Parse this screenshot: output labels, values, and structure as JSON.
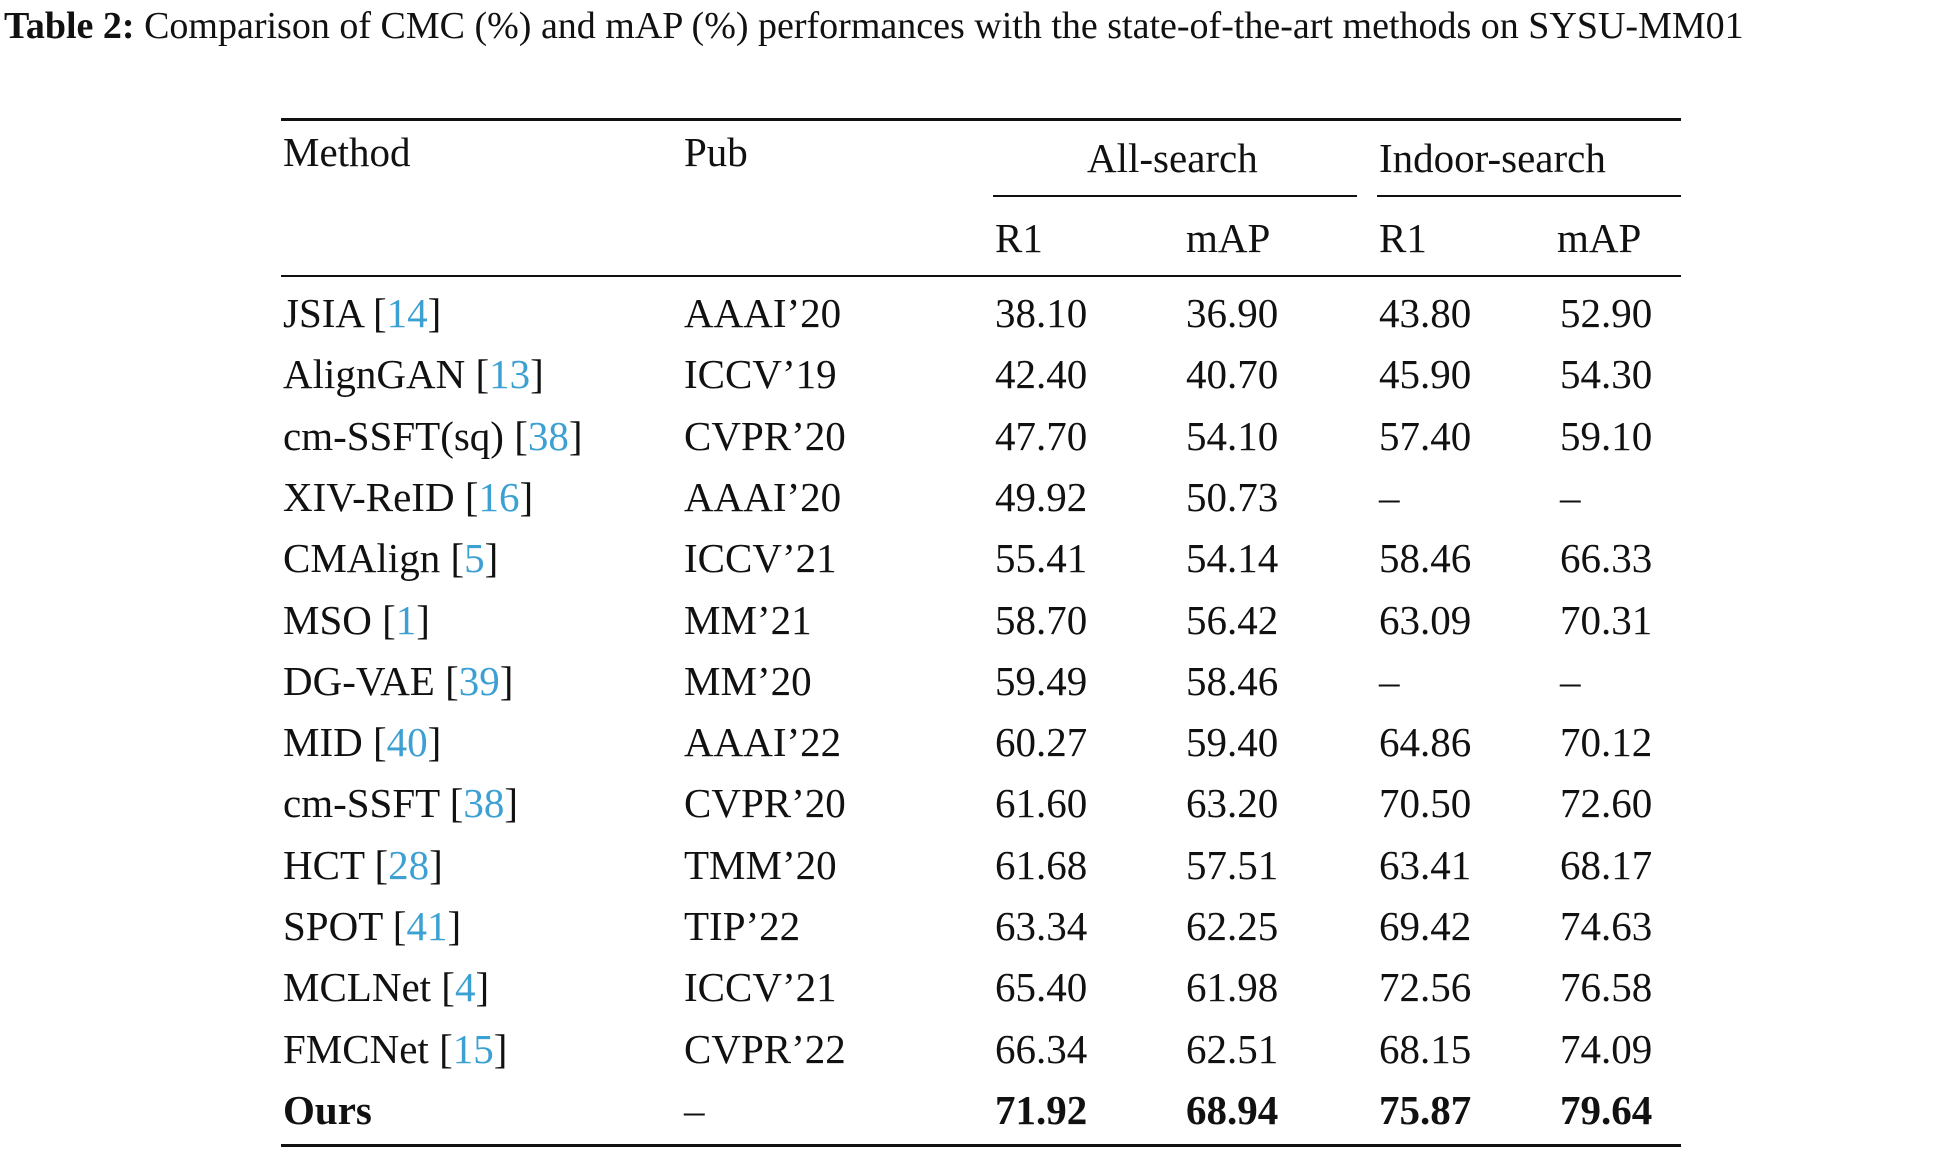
{
  "caption": {
    "label": "Table 2:",
    "text": "Comparison of CMC (%) and mAP (%) performances with the state-of-the-art methods on SYSU-MM01"
  },
  "header": {
    "method": "Method",
    "pub": "Pub",
    "group_all": "All-search",
    "group_indoor": "Indoor-search",
    "r1": "R1",
    "map": "mAP"
  },
  "rows": [
    {
      "method": "JSIA",
      "ref": "14",
      "pub": "AAAI’20",
      "all_r1": "38.10",
      "all_map": "36.90",
      "in_r1": "43.80",
      "in_map": "52.90"
    },
    {
      "method": "AlignGAN",
      "ref": "13",
      "pub": "ICCV’19",
      "all_r1": "42.40",
      "all_map": "40.70",
      "in_r1": "45.90",
      "in_map": "54.30"
    },
    {
      "method": "cm-SSFT(sq)",
      "ref": "38",
      "pub": "CVPR’20",
      "all_r1": "47.70",
      "all_map": "54.10",
      "in_r1": "57.40",
      "in_map": "59.10"
    },
    {
      "method": "XIV-ReID",
      "ref": "16",
      "pub": "AAAI’20",
      "all_r1": "49.92",
      "all_map": "50.73",
      "in_r1": "–",
      "in_map": "–"
    },
    {
      "method": "CMAlign",
      "ref": "5",
      "pub": "ICCV’21",
      "all_r1": "55.41",
      "all_map": "54.14",
      "in_r1": "58.46",
      "in_map": "66.33"
    },
    {
      "method": "MSO",
      "ref": "1",
      "pub": "MM’21",
      "all_r1": "58.70",
      "all_map": "56.42",
      "in_r1": "63.09",
      "in_map": "70.31"
    },
    {
      "method": "DG-VAE",
      "ref": "39",
      "pub": "MM’20",
      "all_r1": "59.49",
      "all_map": "58.46",
      "in_r1": "–",
      "in_map": "–"
    },
    {
      "method": "MID",
      "ref": "40",
      "pub": "AAAI’22",
      "all_r1": "60.27",
      "all_map": "59.40",
      "in_r1": "64.86",
      "in_map": "70.12"
    },
    {
      "method": "cm-SSFT",
      "ref": "38",
      "pub": "CVPR’20",
      "all_r1": "61.60",
      "all_map": "63.20",
      "in_r1": "70.50",
      "in_map": "72.60"
    },
    {
      "method": "HCT",
      "ref": "28",
      "pub": "TMM’20",
      "all_r1": "61.68",
      "all_map": "57.51",
      "in_r1": "63.41",
      "in_map": "68.17"
    },
    {
      "method": "SPOT",
      "ref": "41",
      "pub": "TIP’22",
      "all_r1": "63.34",
      "all_map": "62.25",
      "in_r1": "69.42",
      "in_map": "74.63"
    },
    {
      "method": "MCLNet",
      "ref": "4",
      "pub": "ICCV’21",
      "all_r1": "65.40",
      "all_map": "61.98",
      "in_r1": "72.56",
      "in_map": "76.58"
    },
    {
      "method": "FMCNet",
      "ref": "15",
      "pub": "CVPR’22",
      "all_r1": "66.34",
      "all_map": "62.51",
      "in_r1": "68.15",
      "in_map": "74.09"
    },
    {
      "method": "Ours",
      "ref": "",
      "pub": "–",
      "all_r1": "71.92",
      "all_map": "68.94",
      "in_r1": "75.87",
      "in_map": "79.64",
      "bold": true
    }
  ],
  "colors": {
    "text": "#111111",
    "citation": "#3da0d2"
  }
}
